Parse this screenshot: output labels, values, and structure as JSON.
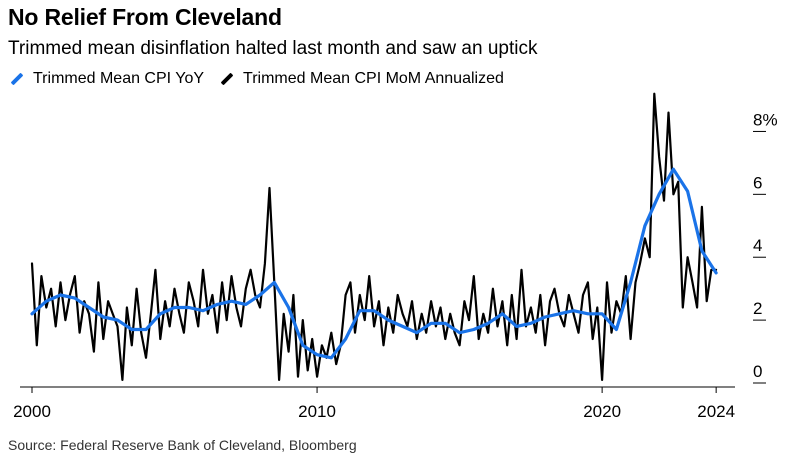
{
  "header": {
    "title": "No Relief From Cleveland",
    "subtitle": "Trimmed mean disinflation halted last month and saw an uptick"
  },
  "legend": [
    {
      "label": "Trimmed Mean CPI YoY",
      "color": "#1a73e8"
    },
    {
      "label": "Trimmed Mean CPI MoM Annualized",
      "color": "#000000"
    }
  ],
  "footer": {
    "source": "Source: Federal Reserve Bank of Cleveland, Bloomberg"
  },
  "chart_data": {
    "type": "line",
    "title": "No Relief From Cleveland",
    "subtitle": "Trimmed mean disinflation halted last month and saw an uptick",
    "xlabel": "",
    "ylabel": "",
    "xlim": [
      2000,
      2024.1
    ],
    "ylim": [
      0,
      9
    ],
    "y_axis_position": "right",
    "y_unit": "%",
    "x_ticks": [
      {
        "value": 2000,
        "label": "2000"
      },
      {
        "value": 2010,
        "label": "2010"
      },
      {
        "value": 2020,
        "label": "2020"
      },
      {
        "value": 2024,
        "label": "2024"
      }
    ],
    "y_ticks": [
      {
        "value": 0,
        "label": "0"
      },
      {
        "value": 2,
        "label": "2"
      },
      {
        "value": 4,
        "label": "4"
      },
      {
        "value": 6,
        "label": "6"
      },
      {
        "value": 8,
        "label": "8%"
      }
    ],
    "grid": false,
    "legend_position": "top-left",
    "series": [
      {
        "name": "Trimmed Mean CPI MoM Annualized",
        "color": "#000000",
        "x": [
          2000.0,
          2000.17,
          2000.33,
          2000.5,
          2000.67,
          2000.83,
          2001.0,
          2001.17,
          2001.33,
          2001.5,
          2001.67,
          2001.83,
          2002.0,
          2002.17,
          2002.33,
          2002.5,
          2002.67,
          2002.83,
          2003.0,
          2003.17,
          2003.33,
          2003.5,
          2003.67,
          2003.83,
          2004.0,
          2004.17,
          2004.33,
          2004.5,
          2004.67,
          2004.83,
          2005.0,
          2005.17,
          2005.33,
          2005.5,
          2005.67,
          2005.83,
          2006.0,
          2006.17,
          2006.33,
          2006.5,
          2006.67,
          2006.83,
          2007.0,
          2007.17,
          2007.33,
          2007.5,
          2007.67,
          2007.83,
          2008.0,
          2008.17,
          2008.33,
          2008.5,
          2008.67,
          2008.83,
          2009.0,
          2009.17,
          2009.33,
          2009.5,
          2009.67,
          2009.83,
          2010.0,
          2010.17,
          2010.33,
          2010.5,
          2010.67,
          2010.83,
          2011.0,
          2011.17,
          2011.33,
          2011.5,
          2011.67,
          2011.83,
          2012.0,
          2012.17,
          2012.33,
          2012.5,
          2012.67,
          2012.83,
          2013.0,
          2013.17,
          2013.33,
          2013.5,
          2013.67,
          2013.83,
          2014.0,
          2014.17,
          2014.33,
          2014.5,
          2014.67,
          2014.83,
          2015.0,
          2015.17,
          2015.33,
          2015.5,
          2015.67,
          2015.83,
          2016.0,
          2016.17,
          2016.33,
          2016.5,
          2016.67,
          2016.83,
          2017.0,
          2017.17,
          2017.33,
          2017.5,
          2017.67,
          2017.83,
          2018.0,
          2018.17,
          2018.33,
          2018.5,
          2018.67,
          2018.83,
          2019.0,
          2019.17,
          2019.33,
          2019.5,
          2019.67,
          2019.83,
          2020.0,
          2020.17,
          2020.33,
          2020.5,
          2020.67,
          2020.83,
          2021.0,
          2021.17,
          2021.33,
          2021.5,
          2021.67,
          2021.83,
          2022.0,
          2022.17,
          2022.33,
          2022.5,
          2022.67,
          2022.83,
          2023.0,
          2023.17,
          2023.33,
          2023.5,
          2023.67,
          2023.83,
          2024.0
        ],
        "values": [
          3.8,
          1.2,
          3.4,
          2.4,
          3.0,
          1.8,
          3.2,
          2.0,
          2.8,
          3.4,
          1.6,
          2.6,
          2.2,
          1.0,
          3.2,
          1.4,
          2.6,
          2.2,
          1.8,
          0.1,
          2.4,
          1.2,
          3.0,
          1.6,
          0.8,
          2.2,
          3.6,
          1.4,
          2.6,
          1.8,
          3.0,
          2.2,
          1.6,
          3.2,
          2.6,
          1.8,
          3.6,
          2.2,
          2.8,
          1.6,
          3.2,
          2.0,
          3.4,
          2.4,
          1.8,
          3.0,
          3.6,
          2.8,
          2.4,
          3.8,
          6.2,
          3.2,
          0.1,
          2.2,
          1.0,
          2.8,
          0.2,
          2.0,
          0.4,
          1.4,
          0.2,
          1.2,
          0.8,
          1.6,
          0.6,
          1.2,
          2.8,
          3.2,
          1.6,
          2.8,
          2.0,
          3.4,
          1.8,
          2.6,
          1.2,
          2.4,
          1.6,
          2.8,
          2.2,
          1.8,
          2.6,
          1.4,
          2.2,
          1.6,
          2.6,
          1.8,
          2.4,
          1.4,
          2.2,
          1.6,
          1.2,
          2.6,
          2.0,
          3.4,
          1.4,
          2.2,
          1.6,
          3.0,
          1.8,
          2.6,
          1.2,
          2.8,
          1.4,
          3.6,
          1.8,
          2.4,
          1.6,
          2.8,
          1.2,
          2.6,
          3.0,
          2.2,
          1.8,
          2.8,
          2.2,
          1.6,
          2.8,
          3.2,
          1.4,
          2.4,
          0.1,
          3.2,
          1.6,
          2.6,
          2.2,
          3.4,
          1.4,
          3.2,
          3.8,
          4.6,
          4.0,
          9.2,
          7.2,
          5.8,
          8.6,
          6.0,
          6.4,
          2.4,
          4.0,
          3.2,
          2.4,
          5.6,
          2.6,
          3.6,
          3.6
        ]
      },
      {
        "name": "Trimmed Mean CPI YoY",
        "color": "#1a73e8",
        "x": [
          2000.0,
          2000.5,
          2001.0,
          2001.5,
          2002.0,
          2002.5,
          2003.0,
          2003.5,
          2004.0,
          2004.5,
          2005.0,
          2005.5,
          2006.0,
          2006.5,
          2007.0,
          2007.5,
          2008.0,
          2008.5,
          2009.0,
          2009.5,
          2010.0,
          2010.5,
          2011.0,
          2011.5,
          2012.0,
          2012.5,
          2013.0,
          2013.5,
          2014.0,
          2014.5,
          2015.0,
          2015.5,
          2016.0,
          2016.5,
          2017.0,
          2017.5,
          2018.0,
          2018.5,
          2019.0,
          2019.5,
          2020.0,
          2020.5,
          2021.0,
          2021.5,
          2022.0,
          2022.5,
          2023.0,
          2023.5,
          2024.0
        ],
        "values": [
          2.2,
          2.6,
          2.8,
          2.7,
          2.4,
          2.1,
          2.0,
          1.7,
          1.7,
          2.2,
          2.4,
          2.4,
          2.3,
          2.5,
          2.6,
          2.5,
          2.8,
          3.2,
          2.4,
          1.2,
          0.9,
          0.8,
          1.4,
          2.3,
          2.3,
          2.0,
          1.8,
          1.6,
          1.9,
          1.9,
          1.6,
          1.7,
          1.9,
          2.2,
          1.8,
          1.9,
          2.1,
          2.2,
          2.3,
          2.2,
          2.2,
          1.7,
          3.2,
          5.0,
          6.0,
          6.8,
          6.1,
          4.2,
          3.5
        ]
      }
    ]
  }
}
